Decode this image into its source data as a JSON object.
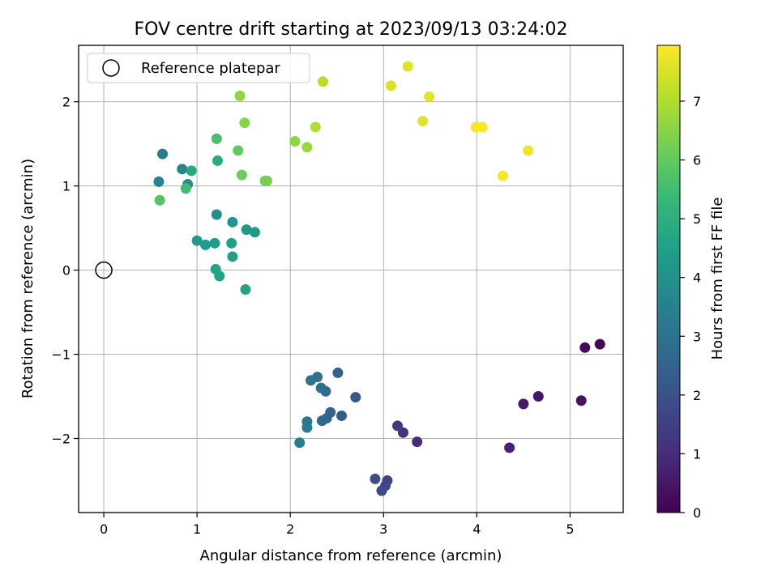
{
  "chart_data": {
    "type": "scatter",
    "title": "FOV centre drift starting at 2023/09/13 03:24:02",
    "xlabel": "Angular distance from reference (arcmin)",
    "ylabel": "Rotation from reference (arcmin)",
    "xlim": [
      -0.27,
      5.57
    ],
    "ylim": [
      -2.88,
      2.67
    ],
    "xticks": [
      0,
      1,
      2,
      3,
      4,
      5
    ],
    "xtick_labels": [
      "0",
      "1",
      "2",
      "3",
      "4",
      "5"
    ],
    "yticks": [
      -2,
      -1,
      0,
      1,
      2
    ],
    "ytick_labels": [
      "−2",
      "−1",
      "0",
      "1",
      "2"
    ],
    "grid": true,
    "legend": {
      "position": "upper-left",
      "entries": [
        "Reference platepar"
      ]
    },
    "reference_point": {
      "x": 0,
      "y": 0,
      "marker": "open-circle"
    },
    "colorbar": {
      "label": "Hours from first FF file",
      "colormap": "viridis",
      "range": [
        0,
        7.95
      ],
      "ticks": [
        0,
        1,
        2,
        3,
        4,
        5,
        6,
        7
      ],
      "tick_labels": [
        "0",
        "1",
        "2",
        "3",
        "4",
        "5",
        "6",
        "7"
      ],
      "stops": [
        "#440154",
        "#482878",
        "#3e4989",
        "#31688e",
        "#26828e",
        "#1f9e89",
        "#35b779",
        "#6ece58",
        "#b5de2b",
        "#fde725"
      ]
    },
    "points": [
      {
        "x": 5.32,
        "y": -0.88,
        "h": 0.1
      },
      {
        "x": 5.16,
        "y": -0.92,
        "h": 0.2
      },
      {
        "x": 5.12,
        "y": -1.55,
        "h": 0.4
      },
      {
        "x": 4.66,
        "y": -1.5,
        "h": 0.5
      },
      {
        "x": 4.5,
        "y": -1.59,
        "h": 0.6
      },
      {
        "x": 4.35,
        "y": -2.11,
        "h": 0.7
      },
      {
        "x": 3.36,
        "y": -2.04,
        "h": 1.0
      },
      {
        "x": 3.21,
        "y": -1.93,
        "h": 1.2
      },
      {
        "x": 3.15,
        "y": -1.85,
        "h": 1.3
      },
      {
        "x": 3.04,
        "y": -2.5,
        "h": 1.6
      },
      {
        "x": 3.02,
        "y": -2.56,
        "h": 1.7
      },
      {
        "x": 2.98,
        "y": -2.62,
        "h": 1.8
      },
      {
        "x": 2.91,
        "y": -2.48,
        "h": 1.9
      },
      {
        "x": 2.7,
        "y": -1.51,
        "h": 2.2
      },
      {
        "x": 2.55,
        "y": -1.73,
        "h": 2.3
      },
      {
        "x": 2.51,
        "y": -1.22,
        "h": 2.4
      },
      {
        "x": 2.43,
        "y": -1.69,
        "h": 2.5
      },
      {
        "x": 2.39,
        "y": -1.76,
        "h": 2.6
      },
      {
        "x": 2.34,
        "y": -1.79,
        "h": 2.7
      },
      {
        "x": 2.38,
        "y": -1.44,
        "h": 2.8
      },
      {
        "x": 2.33,
        "y": -1.4,
        "h": 2.9
      },
      {
        "x": 2.29,
        "y": -1.27,
        "h": 3.0
      },
      {
        "x": 2.22,
        "y": -1.31,
        "h": 3.1
      },
      {
        "x": 2.18,
        "y": -1.8,
        "h": 3.2
      },
      {
        "x": 2.18,
        "y": -1.87,
        "h": 3.3
      },
      {
        "x": 2.1,
        "y": -2.05,
        "h": 3.4
      },
      {
        "x": 0.63,
        "y": 1.38,
        "h": 3.4
      },
      {
        "x": 0.59,
        "y": 1.05,
        "h": 3.6
      },
      {
        "x": 0.84,
        "y": 1.2,
        "h": 3.7
      },
      {
        "x": 0.9,
        "y": 1.02,
        "h": 3.9
      },
      {
        "x": 1.21,
        "y": 0.66,
        "h": 4.0
      },
      {
        "x": 1.38,
        "y": 0.57,
        "h": 4.1
      },
      {
        "x": 1.53,
        "y": 0.48,
        "h": 4.2
      },
      {
        "x": 1.62,
        "y": 0.45,
        "h": 4.3
      },
      {
        "x": 1.0,
        "y": 0.35,
        "h": 4.3
      },
      {
        "x": 1.09,
        "y": 0.3,
        "h": 4.4
      },
      {
        "x": 1.19,
        "y": 0.32,
        "h": 4.4
      },
      {
        "x": 1.37,
        "y": 0.32,
        "h": 4.5
      },
      {
        "x": 1.38,
        "y": 0.16,
        "h": 4.5
      },
      {
        "x": 1.2,
        "y": 0.01,
        "h": 4.6
      },
      {
        "x": 1.24,
        "y": -0.07,
        "h": 4.6
      },
      {
        "x": 1.52,
        "y": -0.23,
        "h": 4.6
      },
      {
        "x": 0.94,
        "y": 1.18,
        "h": 4.8
      },
      {
        "x": 1.22,
        "y": 1.3,
        "h": 4.9
      },
      {
        "x": 0.88,
        "y": 0.97,
        "h": 5.5
      },
      {
        "x": 1.21,
        "y": 1.56,
        "h": 5.6
      },
      {
        "x": 0.6,
        "y": 0.83,
        "h": 5.8
      },
      {
        "x": 1.44,
        "y": 1.42,
        "h": 6.0
      },
      {
        "x": 1.48,
        "y": 1.13,
        "h": 6.1
      },
      {
        "x": 1.73,
        "y": 1.06,
        "h": 6.2
      },
      {
        "x": 1.75,
        "y": 1.06,
        "h": 6.3
      },
      {
        "x": 1.51,
        "y": 1.75,
        "h": 6.5
      },
      {
        "x": 1.46,
        "y": 2.07,
        "h": 6.6
      },
      {
        "x": 2.05,
        "y": 1.53,
        "h": 6.6
      },
      {
        "x": 2.18,
        "y": 1.46,
        "h": 6.7
      },
      {
        "x": 2.27,
        "y": 1.7,
        "h": 7.0
      },
      {
        "x": 2.35,
        "y": 2.24,
        "h": 7.1
      },
      {
        "x": 3.08,
        "y": 2.19,
        "h": 7.5
      },
      {
        "x": 3.26,
        "y": 2.42,
        "h": 7.6
      },
      {
        "x": 3.49,
        "y": 2.06,
        "h": 7.6
      },
      {
        "x": 3.42,
        "y": 1.77,
        "h": 7.6
      },
      {
        "x": 3.99,
        "y": 1.7,
        "h": 7.9
      },
      {
        "x": 4.06,
        "y": 1.7,
        "h": 7.9
      },
      {
        "x": 4.28,
        "y": 1.12,
        "h": 7.9
      },
      {
        "x": 4.55,
        "y": 1.42,
        "h": 7.8
      }
    ]
  }
}
